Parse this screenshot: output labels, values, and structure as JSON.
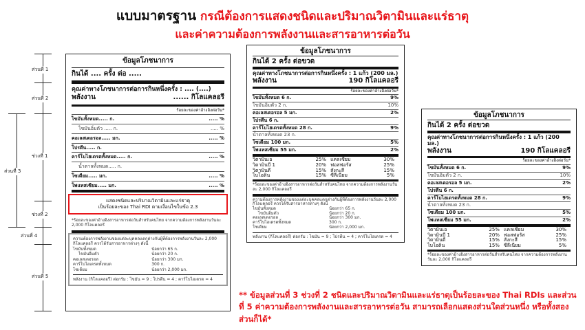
{
  "title": {
    "black": "แบบมาตรฐาน",
    "red": "กรณีต้องการแสดงชนิดและปริมาณวิตามินและแร่ธาตุ",
    "line2": "และค่าความต้องการพลังงานและสารอาหารต่อวัน"
  },
  "annotations": {
    "part1": "ส่วนที่ 1",
    "part2": "ส่วนที่ 2",
    "part3": "ส่วนที่ 3",
    "range1": "ช่วงที่ 1",
    "range2": "ช่วงที่ 2",
    "part4": "ส่วนที่ 4",
    "part5": "ส่วนที่ 5"
  },
  "template_label": {
    "header": "ข้อมูลโภชนาการ",
    "servings": "กินได้ .... ครั้ง ต่อ .....",
    "per_serving": "คุณค่าทางโภชนาการต่อการกินหนึ่งครั้ง : .... (....)",
    "energy_label": "พลังงาน",
    "energy_value": "...... กิโลแคลอรี",
    "rdi_header": "ร้อยละของค่าอ้างอิงต่อวัน*",
    "rows": [
      {
        "name": "ไขมันทั้งหมด..... ก.",
        "pct": "..... %"
      },
      {
        "name": "ไขมันอิ่มตัว ..... ก.",
        "pct": "..... %"
      },
      {
        "name": "คอเลสเตอรอล..... มก.",
        "pct": "..... %"
      },
      {
        "name": "โปรตีน..... ก.",
        "pct": ""
      },
      {
        "name": "คาร์โบไฮเดรตทั้งหมด..... ก.",
        "pct": "..... %"
      },
      {
        "name": "น้ำตาลทั้งหมด..... ก.",
        "pct": ""
      },
      {
        "name": "โซเดียม..... มก.",
        "pct": "..... %"
      },
      {
        "name": "โพแทสเซียม..... มก.",
        "pct": "..... %"
      }
    ],
    "vitamin_box": [
      "แสดงชนิดและปริมาณวิตามินและแร่ธาตุ",
      "เป็นร้อยละของ Thai RDI ตามเงื่อนไขในข้อ 2.3"
    ],
    "footnote": "*ร้อยละของค่าอ้างอิงสารอาหารต่อวันสำหรับคนไทย จากความต้องการพลังงานวันละ 2,000 กิโลแคลอรี"
  },
  "section5": {
    "intro": "ความต้องการพลังงานของแต่ละบุคคลแตกต่างกันผู้ที่ต้องการพลังงานวันละ 2,000 กิโลแคลอรี ควรได้รับสารอาหารต่างๆ ดังนี้",
    "items": [
      {
        "name": "ไขมันทั้งหมด",
        "value": "น้อยกว่า 65 ก."
      },
      {
        "name": "ไขมันอิ่มตัว",
        "value": "น้อยกว่า 20 ก."
      },
      {
        "name": "คอเลสเตอรอล",
        "value": "น้อยกว่า 300 มก."
      },
      {
        "name": "คาร์โบไฮเดรตทั้งหมด",
        "value": "300 ก."
      },
      {
        "name": "โซเดียม",
        "value": "น้อยกว่า 2,000 มก."
      }
    ],
    "energy_note": "พลังงาน (กิโลแคลอรี) ต่อกรัม : ไขมัน = 9 ; โปรตีน = 4 ; คาร์โบไฮเดรต = 4"
  },
  "example_label": {
    "header": "ข้อมูลโภชนาการ",
    "servings": "กินได้ 2 ครั้ง ต่อขวด",
    "per_serving": "คุณค่าทางโภชนาการต่อการกินหนึ่งครั้ง : 1 แก้ว (200 มล.)",
    "energy_label": "พลังงาน",
    "energy_value": "190 กิโลแคลอรี",
    "rdi_header": "ร้อยละของค่าอ้างอิงต่อวัน*",
    "rows": [
      {
        "name": "ไขมันทั้งหมด 6 ก.",
        "pct": "9%"
      },
      {
        "name": "ไขมันอิ่มตัว 2 ก.",
        "pct": "10%"
      },
      {
        "name": "คอเลสเตอรอล 5 มก.",
        "pct": "2%"
      },
      {
        "name": "โปรตีน 6 ก.",
        "pct": ""
      },
      {
        "name": "คาร์โบไฮเดรตทั้งหมด 28 ก.",
        "pct": "9%"
      },
      {
        "name": "น้ำตาลทั้งหมด 23 ก.",
        "pct": ""
      },
      {
        "name": "โซเดียม 100 มก.",
        "pct": "5%"
      },
      {
        "name": "โพแทสเซียม 55 มก.",
        "pct": "2%"
      }
    ],
    "vitamins": [
      [
        "วิตามินเอ",
        "25%",
        "แคลเซียม",
        "30%"
      ],
      [
        "วิตามินบี 1",
        "20%",
        "ฟอสฟอรัส",
        "25%"
      ],
      [
        "วิตามินดี",
        "15%",
        "สังกะสี",
        "15%"
      ],
      [
        "ไบโอติน",
        "15%",
        "ซีลีเนียม",
        "5%"
      ]
    ],
    "footnote": "*ร้อยละของค่าอ้างอิงสารอาหารต่อวันสำหรับคนไทย จากความต้องการพลังงานวันละ 2,000 กิโลแคลอรี"
  },
  "note": "** ข้อมูลส่วนที่ 3 ช่วงที่ 2 ชนิดและปริมาณวิตามินและแร่ธาตุเป็นร้อยละของ Thai RDIs และส่วนที่ 5 ค่าความต้องการพลังงานและสารอาหารต่อวัน สามารถเลือกแสดงส่วนใดส่วนหนึ่ง หรือทั้งสองส่วนก็ได้*"
}
